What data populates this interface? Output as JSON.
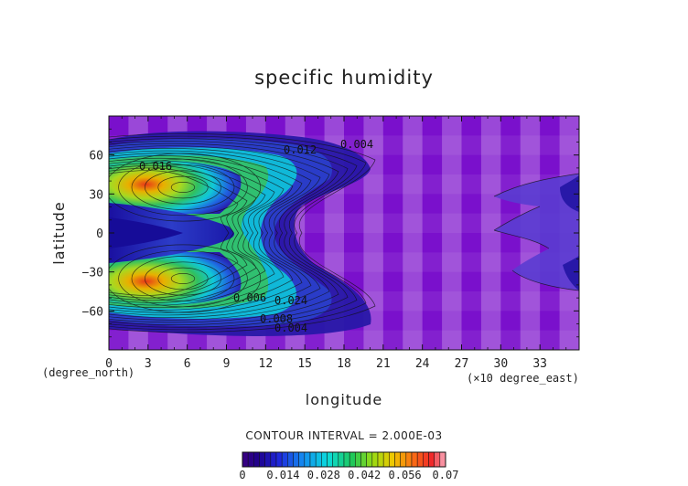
{
  "chart_data": {
    "type": "heatmap",
    "title": "specific humidity",
    "xlabel": "longitude",
    "ylabel": "latitude",
    "x_unit_note": "(×10 degree_east)",
    "y_unit_note": "(degree_north)",
    "contour_interval_text": "CONTOUR INTERVAL = 2.000E-03",
    "xlim": [
      0,
      360
    ],
    "ylim": [
      -90,
      90
    ],
    "x_ticks": [
      {
        "value": 0,
        "label": "0"
      },
      {
        "value": 30,
        "label": "3"
      },
      {
        "value": 60,
        "label": "6"
      },
      {
        "value": 90,
        "label": "9"
      },
      {
        "value": 120,
        "label": "12"
      },
      {
        "value": 150,
        "label": "15"
      },
      {
        "value": 180,
        "label": "18"
      },
      {
        "value": 210,
        "label": "21"
      },
      {
        "value": 240,
        "label": "24"
      },
      {
        "value": 270,
        "label": "27"
      },
      {
        "value": 300,
        "label": "30"
      },
      {
        "value": 330,
        "label": "33"
      }
    ],
    "y_ticks": [
      {
        "value": 60,
        "label": "60"
      },
      {
        "value": 30,
        "label": "30"
      },
      {
        "value": 0,
        "label": "0"
      },
      {
        "value": -30,
        "label": "−30"
      },
      {
        "value": -60,
        "label": "−60"
      }
    ],
    "colorbar": {
      "min": 0,
      "max": 0.07,
      "tick_labels": [
        "0",
        "0.014",
        "0.028",
        "0.042",
        "0.056",
        "0.07"
      ]
    },
    "contour_labels": [
      "0.016",
      "0.012",
      "0.004",
      "0.008",
      "0.024",
      "0.006",
      "0.004"
    ],
    "colors": {
      "background_dark": "#7a10cc",
      "background_light": "#9a48d8",
      "low": "#2a1aa8",
      "mid": "#10c8d8",
      "high": "#e03020"
    }
  }
}
